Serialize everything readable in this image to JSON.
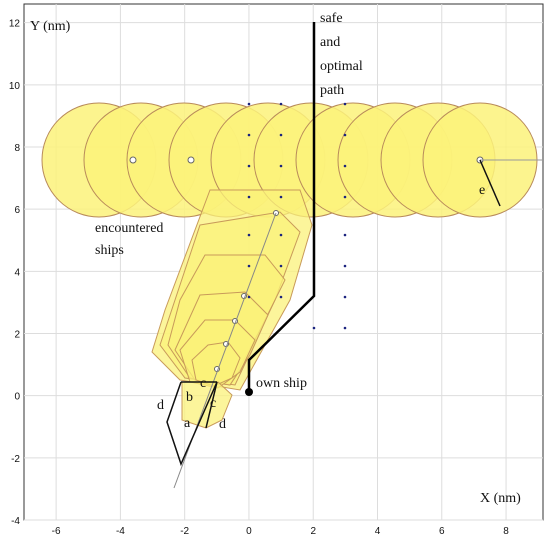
{
  "chart_data": {
    "type": "diagram",
    "x_label": "X (nm)",
    "y_label": "Y (nm)",
    "xlim": [
      -7,
      9.15
    ],
    "ylim": [
      -4,
      12.6
    ],
    "xticks": [
      -6,
      -4,
      -2,
      0,
      2,
      4,
      6,
      8
    ],
    "yticks": [
      -4,
      -2,
      0,
      2,
      4,
      6,
      8,
      10,
      12
    ],
    "grid": true,
    "annotations": [
      "safe\nand\noptimal\npath",
      "encountered\nships",
      "own ship",
      "a",
      "b",
      "c",
      "c",
      "d",
      "d",
      "e"
    ]
  }
}
